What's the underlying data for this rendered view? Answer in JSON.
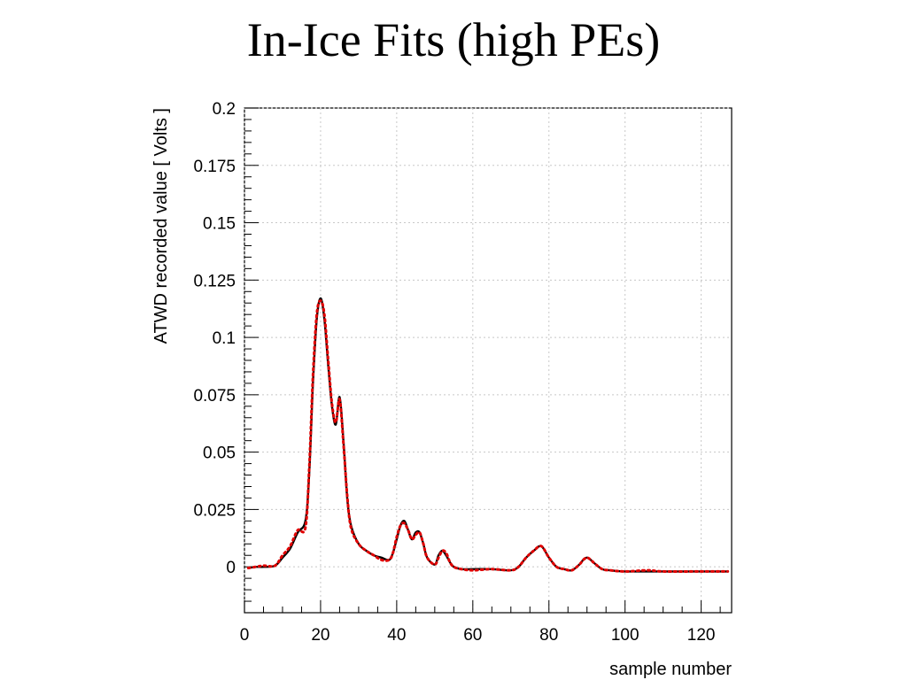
{
  "slide": {
    "title": "In-Ice Fits (high PEs)"
  },
  "chart_data": {
    "type": "line",
    "title": "",
    "xlabel": "sample number",
    "ylabel": "ATWD recorded value [ Volts ]",
    "xlim": [
      0,
      128
    ],
    "ylim": [
      -0.02,
      0.2
    ],
    "xticks": [
      0,
      20,
      40,
      60,
      80,
      100,
      120
    ],
    "yticks": [
      0,
      0.025,
      0.05,
      0.075,
      0.1,
      0.125,
      0.15,
      0.175,
      0.2
    ],
    "xtick_labels": [
      "0",
      "20",
      "40",
      "60",
      "80",
      "100",
      "120"
    ],
    "ytick_labels": [
      "0",
      "0.025",
      "0.05",
      "0.075",
      "0.1",
      "0.125",
      "0.15",
      "0.175",
      "0.2"
    ],
    "grid": true,
    "colors": {
      "fit": "#000000",
      "data": "#e00000"
    },
    "series": [
      {
        "style": "solid",
        "x": [
          1,
          3,
          5,
          8,
          10,
          12,
          14,
          16,
          17,
          18,
          19,
          20,
          21,
          22,
          23,
          24,
          25,
          26,
          27,
          28,
          30,
          32,
          34,
          36,
          38,
          39,
          40,
          41,
          42,
          43,
          44,
          45,
          46,
          47,
          48,
          50,
          51,
          52,
          53,
          54,
          55,
          57,
          60,
          65,
          70,
          72,
          74,
          76,
          78,
          80,
          82,
          84,
          86,
          88,
          89,
          90,
          91,
          92,
          94,
          96,
          100,
          110,
          120,
          127
        ],
        "y": [
          -0.0005,
          0.0,
          0.0,
          0.0005,
          0.004,
          0.008,
          0.015,
          0.02,
          0.04,
          0.08,
          0.108,
          0.117,
          0.108,
          0.088,
          0.07,
          0.062,
          0.074,
          0.055,
          0.03,
          0.018,
          0.01,
          0.007,
          0.005,
          0.004,
          0.003,
          0.006,
          0.012,
          0.018,
          0.02,
          0.016,
          0.012,
          0.015,
          0.015,
          0.01,
          0.004,
          0.001,
          0.005,
          0.007,
          0.005,
          0.002,
          0.0,
          -0.001,
          -0.001,
          -0.001,
          -0.0015,
          0.0,
          0.004,
          0.007,
          0.009,
          0.004,
          0.0,
          -0.001,
          -0.0015,
          0.001,
          0.003,
          0.004,
          0.003,
          0.0015,
          -0.001,
          -0.0015,
          -0.002,
          -0.002,
          -0.002,
          -0.002
        ]
      },
      {
        "style": "dotted",
        "x": [
          1,
          3,
          5,
          8,
          10,
          12,
          14,
          16,
          17,
          18,
          19,
          20,
          21,
          22,
          23,
          24,
          25,
          26,
          27,
          28,
          30,
          32,
          34,
          36,
          38,
          39,
          40,
          41,
          42,
          43,
          44,
          45,
          46,
          47,
          48,
          50,
          51,
          52,
          53,
          54,
          55,
          57,
          60,
          65,
          70,
          72,
          74,
          76,
          78,
          80,
          82,
          84,
          86,
          88,
          89,
          90,
          91,
          92,
          94,
          96,
          100,
          106,
          110,
          120,
          127
        ],
        "y": [
          -0.0005,
          0.0,
          0.0005,
          0.0005,
          0.005,
          0.009,
          0.016,
          0.017,
          0.042,
          0.083,
          0.11,
          0.116,
          0.11,
          0.09,
          0.071,
          0.063,
          0.073,
          0.054,
          0.031,
          0.017,
          0.01,
          0.007,
          0.005,
          0.003,
          0.003,
          0.006,
          0.013,
          0.018,
          0.019,
          0.016,
          0.012,
          0.014,
          0.015,
          0.01,
          0.004,
          0.001,
          0.004,
          0.007,
          0.006,
          0.002,
          0.0,
          -0.001,
          -0.0015,
          -0.001,
          -0.0015,
          0.0,
          0.004,
          0.007,
          0.009,
          0.004,
          0.0,
          -0.001,
          -0.0015,
          0.001,
          0.003,
          0.004,
          0.003,
          0.0015,
          -0.001,
          -0.0015,
          -0.002,
          -0.0015,
          -0.002,
          -0.002,
          -0.002
        ]
      }
    ]
  }
}
